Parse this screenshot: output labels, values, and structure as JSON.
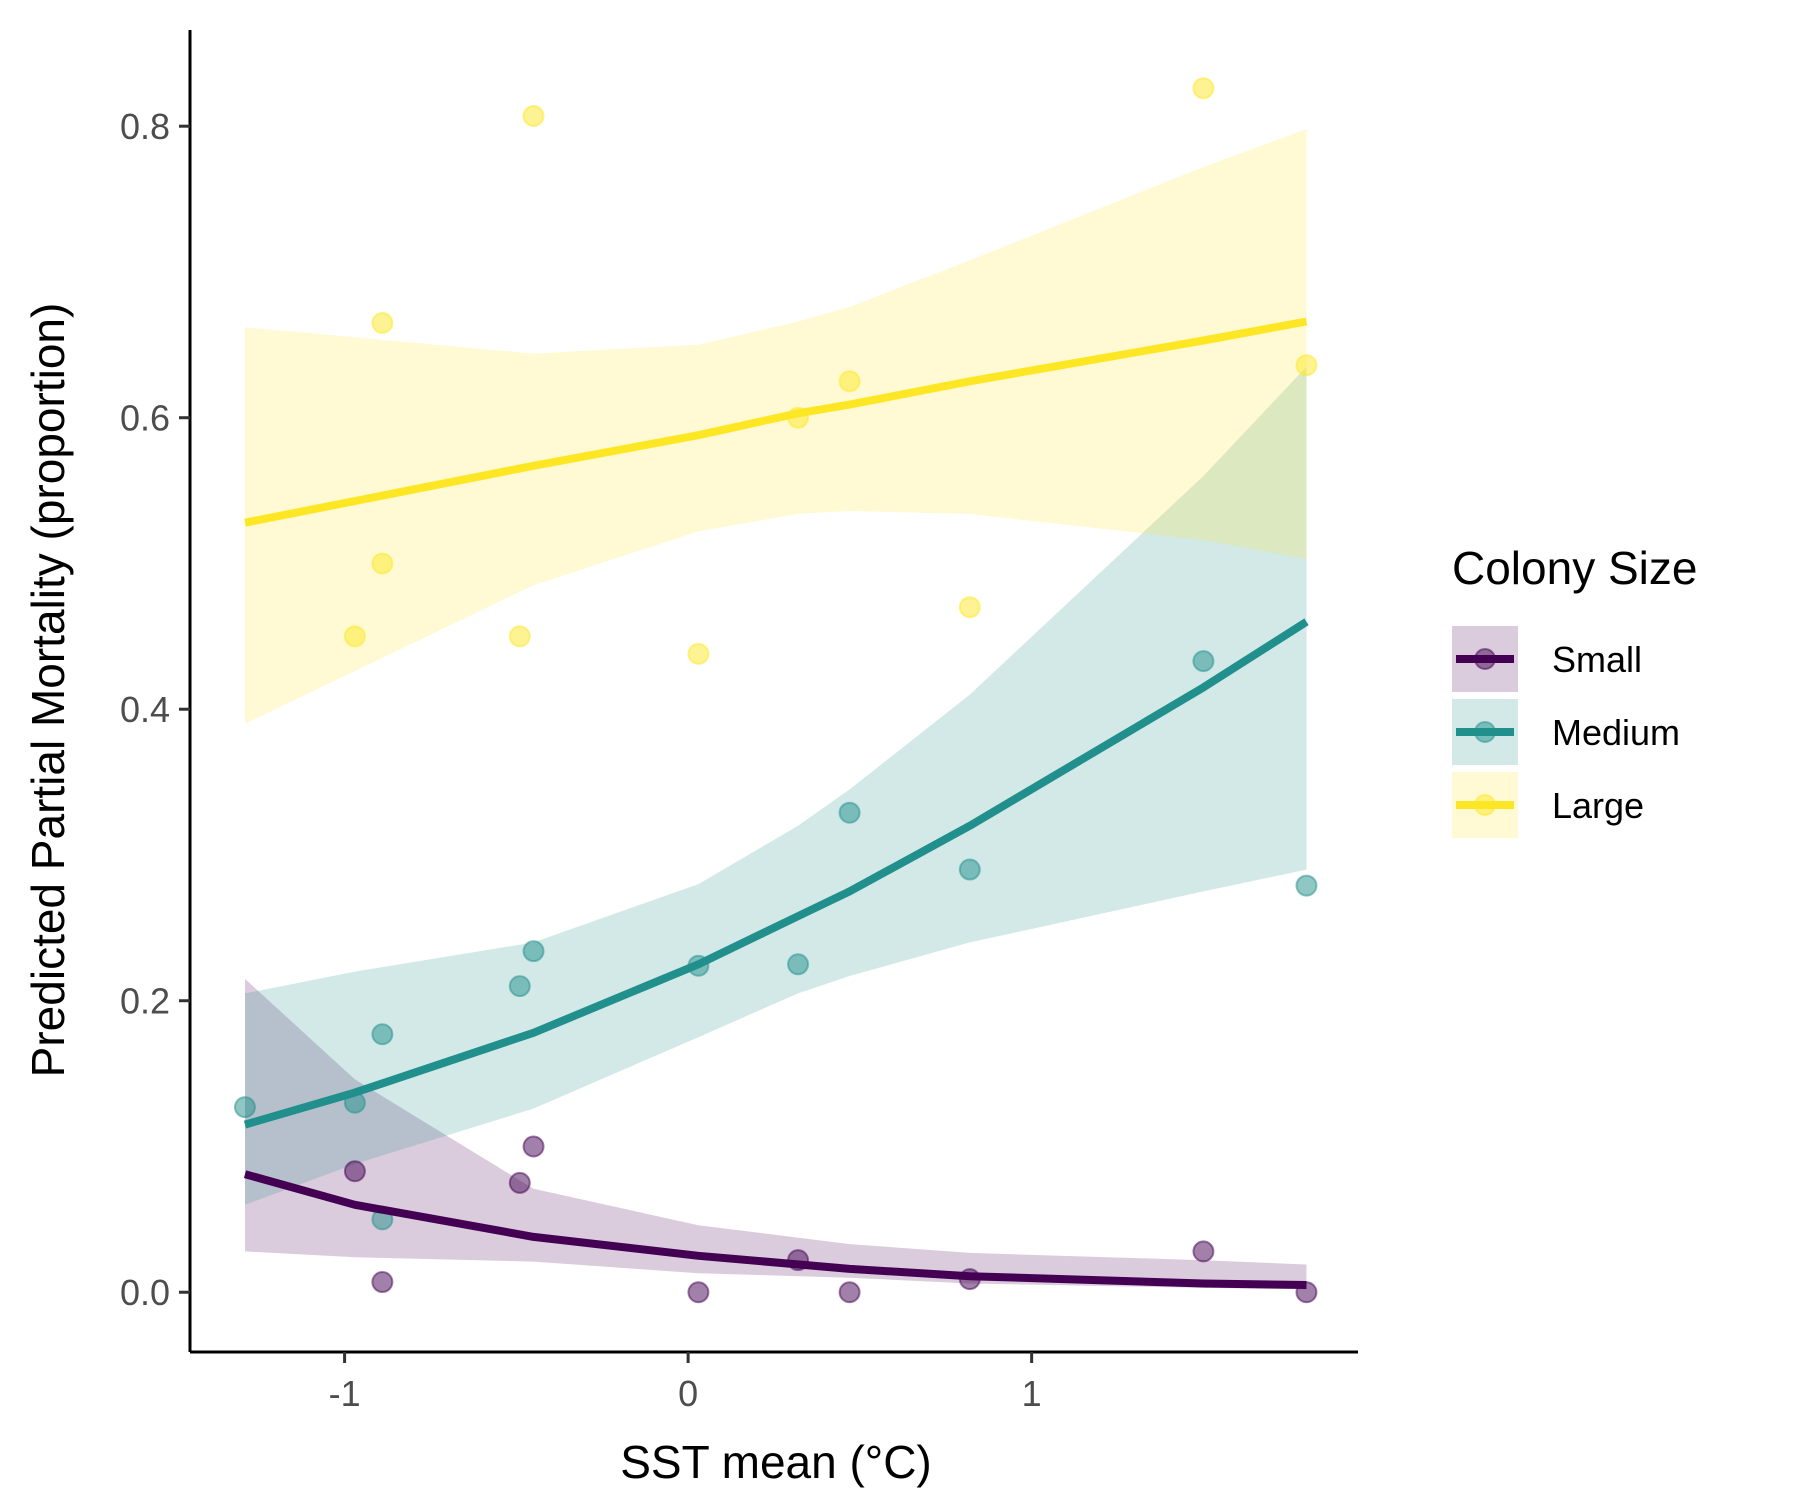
{
  "chart_data": {
    "type": "line",
    "xlabel": "SST mean (°C)",
    "ylabel": "Predicted Partial Mortality (proportion)",
    "xlim": [
      -1.45,
      1.95
    ],
    "ylim": [
      -0.041,
      0.866
    ],
    "x_ticks": [
      -1,
      0,
      1
    ],
    "x_tick_labels": [
      "-1",
      "0",
      "1"
    ],
    "y_ticks": [
      0.0,
      0.2,
      0.4,
      0.6,
      0.8
    ],
    "y_tick_labels": [
      "0.0",
      "0.2",
      "0.4",
      "0.6",
      "0.8"
    ],
    "grid": false,
    "legend": {
      "title": "Colony Size",
      "position": "right",
      "entries": [
        "Small",
        "Medium",
        "Large"
      ]
    },
    "series": [
      {
        "name": "Small",
        "color": "#440154",
        "fit": {
          "x": [
            -1.29,
            -0.97,
            -0.45,
            0.03,
            0.47,
            0.82,
            1.5,
            1.8
          ],
          "y": [
            0.081,
            0.06,
            0.038,
            0.025,
            0.016,
            0.011,
            0.006,
            0.005
          ],
          "lower": [
            0.028,
            0.024,
            0.021,
            0.013,
            0.01,
            0.006,
            0.003,
            0.002
          ],
          "upper": [
            0.215,
            0.146,
            0.071,
            0.046,
            0.033,
            0.027,
            0.022,
            0.019
          ]
        },
        "points": {
          "x": [
            -0.97,
            -0.89,
            -0.49,
            -0.45,
            0.03,
            0.32,
            0.47,
            0.82,
            1.5,
            1.8
          ],
          "y": [
            0.083,
            0.007,
            0.075,
            0.1,
            0.0,
            0.022,
            0.0,
            0.009,
            0.028,
            0.0
          ]
        }
      },
      {
        "name": "Medium",
        "color": "#21908C",
        "fit": {
          "x": [
            -1.29,
            -0.97,
            -0.45,
            0.03,
            0.32,
            0.47,
            0.82,
            1.5,
            1.8
          ],
          "y": [
            0.115,
            0.137,
            0.178,
            0.225,
            0.258,
            0.275,
            0.32,
            0.415,
            0.46
          ],
          "lower": [
            0.06,
            0.088,
            0.126,
            0.175,
            0.205,
            0.217,
            0.24,
            0.275,
            0.29
          ],
          "upper": [
            0.205,
            0.22,
            0.24,
            0.28,
            0.32,
            0.345,
            0.41,
            0.56,
            0.635
          ]
        },
        "points": {
          "x": [
            -1.29,
            -0.97,
            -0.89,
            -0.89,
            -0.49,
            -0.45,
            0.03,
            0.32,
            0.47,
            0.82,
            1.5,
            1.8
          ],
          "y": [
            0.127,
            0.13,
            0.177,
            0.05,
            0.21,
            0.234,
            0.224,
            0.225,
            0.329,
            0.29,
            0.433,
            0.279
          ]
        }
      },
      {
        "name": "Large",
        "color": "#FDE725",
        "fit": {
          "x": [
            -1.29,
            -0.45,
            0.03,
            0.32,
            0.47,
            0.82,
            1.5,
            1.8
          ],
          "y": [
            0.528,
            0.567,
            0.588,
            0.603,
            0.609,
            0.625,
            0.653,
            0.666
          ],
          "lower": [
            0.39,
            0.485,
            0.522,
            0.534,
            0.536,
            0.534,
            0.516,
            0.503
          ],
          "upper": [
            0.662,
            0.644,
            0.65,
            0.666,
            0.676,
            0.708,
            0.772,
            0.798
          ]
        },
        "points": {
          "x": [
            -0.97,
            -0.89,
            -0.89,
            -0.49,
            -0.45,
            0.03,
            0.32,
            0.47,
            0.82,
            1.5,
            1.8
          ],
          "y": [
            0.45,
            0.665,
            0.5,
            0.45,
            0.807,
            0.438,
            0.6,
            0.625,
            0.47,
            0.826,
            0.636
          ]
        }
      }
    ]
  }
}
